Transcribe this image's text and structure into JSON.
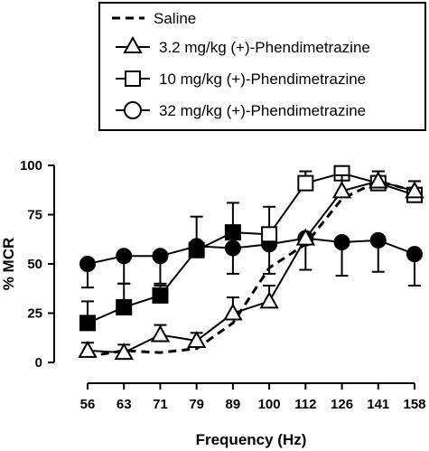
{
  "chart_data": {
    "type": "line",
    "xlabel": "Frequency (Hz)",
    "ylabel": "% MCR",
    "x_scale": "log",
    "x": [
      56,
      63,
      71,
      79,
      89,
      100,
      112,
      126,
      141,
      158
    ],
    "x_tick_labels": [
      "56",
      "63",
      "71",
      "79",
      "89",
      "100",
      "112",
      "126",
      "141",
      "158"
    ],
    "ylim": [
      0,
      100
    ],
    "y_ticks": [
      0,
      25,
      50,
      75,
      100
    ],
    "legend_position": "top-right",
    "grid": false,
    "series": [
      {
        "name": "Saline",
        "marker": "none",
        "line_style": "dashed",
        "values": [
          3,
          6,
          5,
          7,
          20,
          48,
          60,
          83,
          92,
          87
        ],
        "error_up": []
      },
      {
        "name": "3.2 mg/kg (+)-Phendimetrazine",
        "marker": "triangle-open",
        "line_style": "solid",
        "values": [
          6,
          5,
          14,
          11,
          25,
          31,
          63,
          87,
          92,
          87
        ],
        "error_up": [
          4,
          4,
          5,
          4,
          8,
          8,
          0,
          8,
          5,
          5
        ]
      },
      {
        "name": "10 mg/kg (+)-Phendimetrazine",
        "marker": "square-open",
        "line_style": "solid",
        "values": [
          20,
          28,
          34,
          57,
          66,
          65,
          91,
          96,
          91,
          85
        ],
        "error_up": [
          11,
          12,
          5,
          17,
          15,
          14,
          6,
          0,
          6,
          7
        ]
      },
      {
        "name": "32 mg/kg (+)-Phendimetrazine",
        "marker": "circle-open",
        "line_style": "solid",
        "values": [
          50,
          54,
          54,
          59,
          58,
          60,
          63,
          61,
          62,
          55
        ],
        "error_up": [
          0,
          0,
          0,
          0,
          0,
          0,
          0,
          0,
          0,
          0
        ],
        "error_down": [
          12,
          14,
          14,
          0,
          13,
          15,
          16,
          17,
          16,
          16
        ]
      }
    ]
  },
  "colors": {
    "ink": "#000000",
    "paper": "#ffffff"
  }
}
